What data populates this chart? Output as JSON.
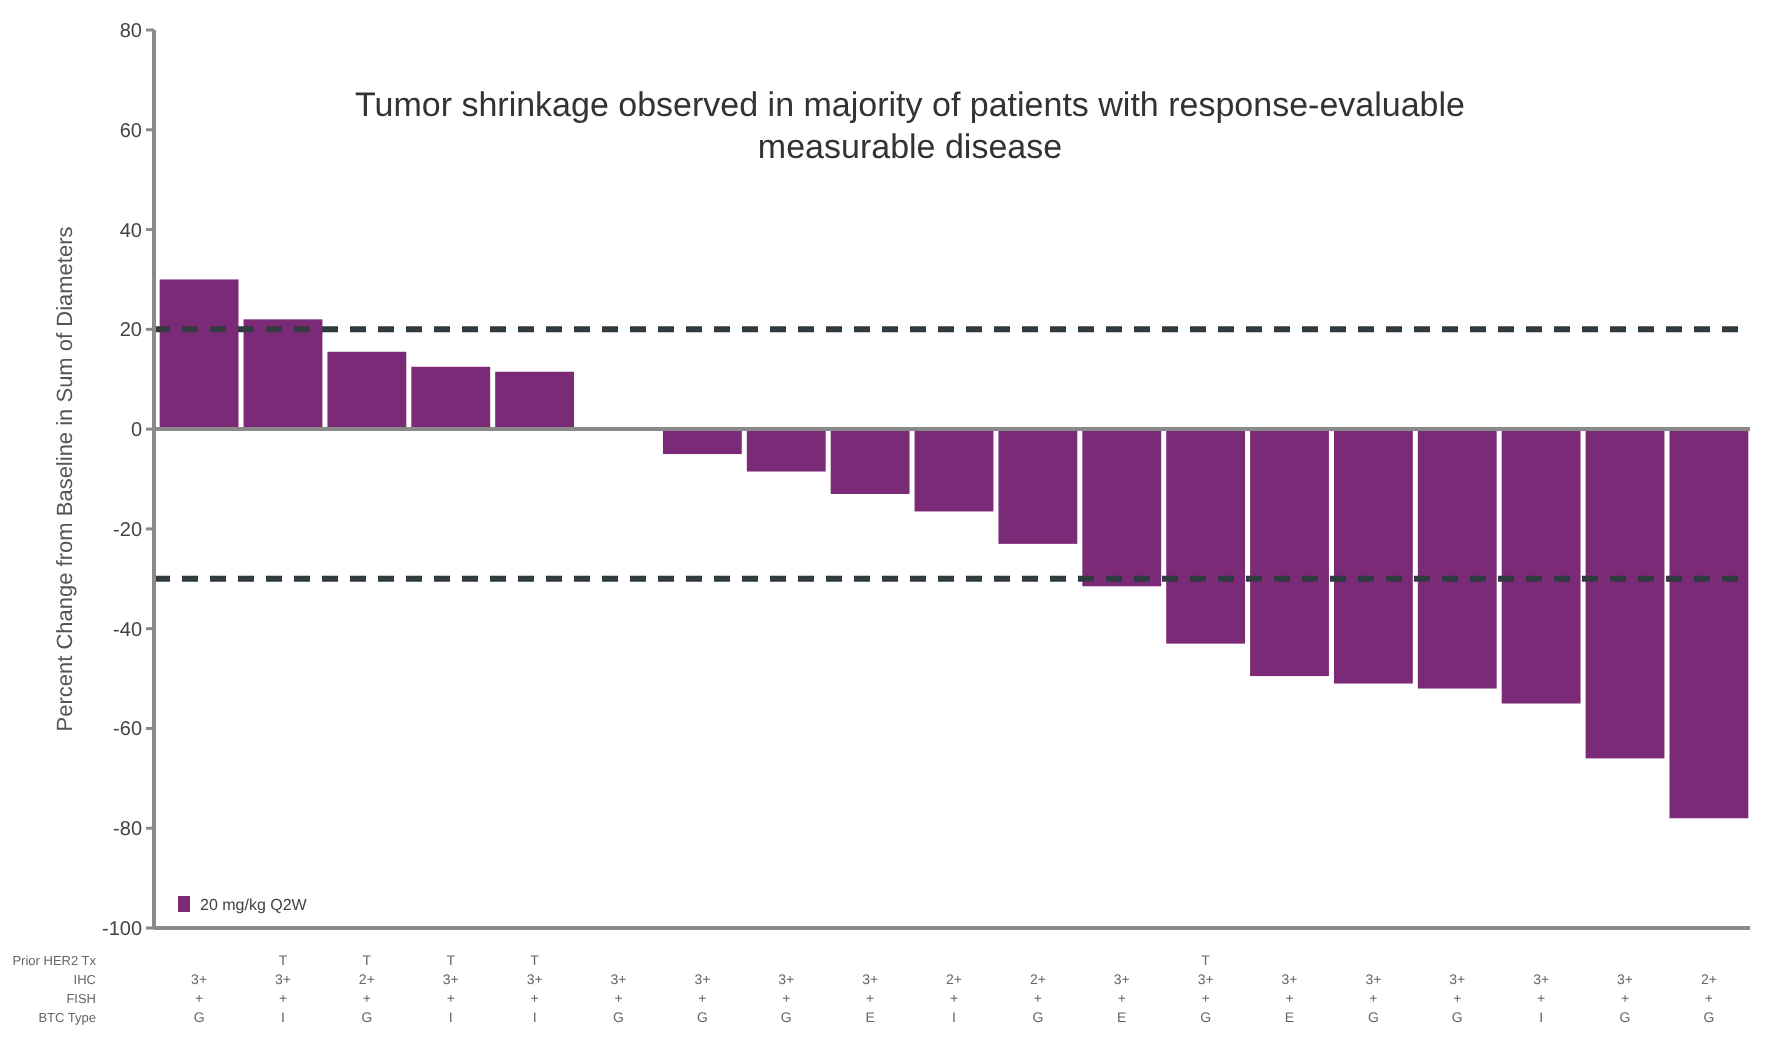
{
  "chart_data": {
    "type": "bar",
    "title": "Tumor shrinkage observed in majority of patients with response-evaluable measurable disease",
    "ylabel": "Percent Change from Baseline in Sum of Diameters",
    "categories": [
      "\n3+\n+\nG",
      "T\n3+\n+\nI",
      "T\n2+\n+\nG",
      "T\n3+\n+\nI",
      "T\n3+\n+\nI",
      "\n3+\n+\nG",
      "\n3+\n+\nG",
      "\n3+\n+\nG",
      "\n3+\n+\nE",
      "\n2+\n+\nI",
      "\n2+\n+\nG",
      "\n3+\n+\nE",
      "T\n3+\n+\nG",
      "\n3+\n+\nE",
      "\n3+\n+\nG",
      "\n3+\n+\nG",
      "\n3+\n+\nI",
      "\n3+\n+\nG",
      "\n2+\n+\nG"
    ],
    "series": [
      {
        "name": "20 mg/kg Q2W",
        "color": "#7b2a78",
        "values": [
          30,
          22,
          15.5,
          12.5,
          11.5,
          0,
          -5,
          -8.5,
          -13,
          -16.5,
          -23,
          -31.5,
          -43,
          -49.5,
          -51,
          -52,
          -55,
          -66,
          -78
        ]
      }
    ],
    "annotations": [
      "Prior HER2 Tx",
      "IHC",
      "FISH",
      "BTC Type"
    ],
    "ylim": [
      -100,
      80
    ],
    "yticks": [
      -100,
      -80,
      -60,
      -40,
      -20,
      0,
      20,
      40,
      60,
      80
    ],
    "ref_lines": [
      {
        "axis": "y",
        "value": 20,
        "color": "#2f3b3f",
        "line_style": "dashed"
      },
      {
        "axis": "y",
        "value": -30,
        "color": "#2f3b3f",
        "line_style": "dashed"
      }
    ],
    "legend": "bottom left",
    "grid": false
  }
}
